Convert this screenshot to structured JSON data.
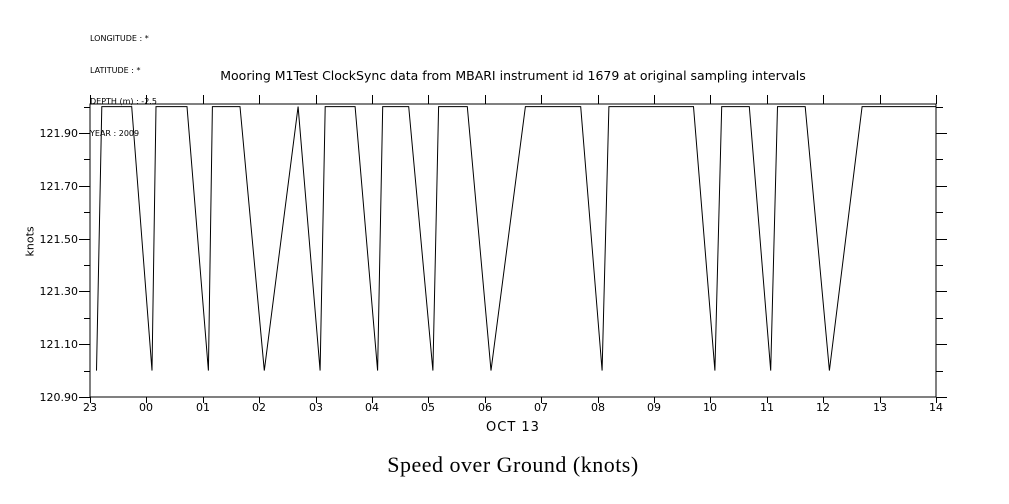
{
  "meta": {
    "longitude": "LONGITUDE : *",
    "latitude": "LATITUDE : *",
    "depth": "DEPTH (m) : -2.5",
    "year": "YEAR : 2009"
  },
  "chart_data": {
    "type": "line",
    "title": "Mooring M1Test ClockSync data from MBARI instrument id 1679 at original sampling intervals",
    "xlabel": "OCT 13",
    "ylabel": "knots",
    "caption": "Speed over Ground (knots)",
    "line_color": "#000000",
    "background_color": "#ffffff",
    "grid": false,
    "legend": false,
    "xlim": [
      23,
      38
    ],
    "ylim": [
      120.9,
      122.01
    ],
    "x_axis_note": "hour of day; 23 belongs to previous day, 00-14 are OCT 13",
    "x_ticks": [
      {
        "t": 23,
        "label": "23"
      },
      {
        "t": 24,
        "label": "00"
      },
      {
        "t": 25,
        "label": "01"
      },
      {
        "t": 26,
        "label": "02"
      },
      {
        "t": 27,
        "label": "03"
      },
      {
        "t": 28,
        "label": "04"
      },
      {
        "t": 29,
        "label": "05"
      },
      {
        "t": 30,
        "label": "06"
      },
      {
        "t": 31,
        "label": "07"
      },
      {
        "t": 32,
        "label": "08"
      },
      {
        "t": 33,
        "label": "09"
      },
      {
        "t": 34,
        "label": "10"
      },
      {
        "t": 35,
        "label": "11"
      },
      {
        "t": 36,
        "label": "12"
      },
      {
        "t": 37,
        "label": "13"
      },
      {
        "t": 38,
        "label": "14"
      }
    ],
    "y_major_ticks": [
      {
        "v": 120.9,
        "label": "120.90"
      },
      {
        "v": 121.1,
        "label": "121.10"
      },
      {
        "v": 121.3,
        "label": "121.30"
      },
      {
        "v": 121.5,
        "label": "121.50"
      },
      {
        "v": 121.7,
        "label": "121.70"
      },
      {
        "v": 121.9,
        "label": "121.90"
      }
    ],
    "y_minor_ticks": [
      121.0,
      121.2,
      121.4,
      121.6,
      121.8,
      122.0
    ],
    "peaks_clipped_at": 122.0,
    "series": [
      {
        "name": "speed_over_ground",
        "points": [
          [
            23.115,
            121.0
          ],
          [
            23.21,
            122.0
          ],
          [
            23.74,
            122.0
          ],
          [
            24.1,
            121.0
          ],
          [
            24.17,
            122.0
          ],
          [
            24.72,
            122.0
          ],
          [
            25.1,
            121.0
          ],
          [
            25.17,
            122.0
          ],
          [
            25.66,
            122.0
          ],
          [
            26.09,
            121.0
          ],
          [
            26.69,
            122.0
          ],
          [
            27.08,
            121.0
          ],
          [
            27.17,
            122.0
          ],
          [
            27.7,
            122.0
          ],
          [
            28.1,
            121.0
          ],
          [
            28.19,
            122.0
          ],
          [
            28.65,
            122.0
          ],
          [
            29.08,
            121.0
          ],
          [
            29.18,
            122.0
          ],
          [
            29.69,
            122.0
          ],
          [
            30.11,
            121.0
          ],
          [
            30.72,
            122.0
          ],
          [
            31.7,
            122.0
          ],
          [
            32.08,
            121.0
          ],
          [
            32.2,
            122.0
          ],
          [
            33.7,
            122.0
          ],
          [
            34.08,
            121.0
          ],
          [
            34.2,
            122.0
          ],
          [
            34.69,
            122.0
          ],
          [
            35.07,
            121.0
          ],
          [
            35.19,
            122.0
          ],
          [
            35.68,
            122.0
          ],
          [
            36.11,
            121.0
          ],
          [
            36.69,
            122.0
          ],
          [
            38.0,
            122.0
          ]
        ]
      }
    ]
  }
}
